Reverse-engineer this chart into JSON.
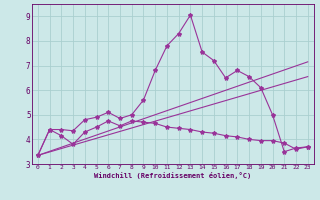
{
  "xlabel": "Windchill (Refroidissement éolien,°C)",
  "background_color": "#cce8e8",
  "grid_color": "#aacfcf",
  "line_color": "#993399",
  "xlim": [
    -0.5,
    23.5
  ],
  "ylim": [
    3.0,
    9.5
  ],
  "yticks": [
    3,
    4,
    5,
    6,
    7,
    8,
    9
  ],
  "xticks": [
    0,
    1,
    2,
    3,
    4,
    5,
    6,
    7,
    8,
    9,
    10,
    11,
    12,
    13,
    14,
    15,
    16,
    17,
    18,
    19,
    20,
    21,
    22,
    23
  ],
  "series1_x": [
    0,
    1,
    2,
    3,
    4,
    5,
    6,
    7,
    8,
    9,
    10,
    11,
    12,
    13,
    14,
    15,
    16,
    17,
    18,
    19,
    20,
    21,
    22,
    23
  ],
  "series1_y": [
    3.35,
    4.4,
    4.4,
    4.35,
    4.8,
    4.9,
    5.1,
    4.85,
    5.0,
    5.6,
    6.8,
    7.8,
    8.3,
    9.05,
    7.55,
    7.2,
    6.5,
    6.8,
    6.55,
    6.1,
    5.0,
    3.5,
    3.65,
    3.7
  ],
  "series2_x": [
    0,
    1,
    2,
    3,
    4,
    5,
    6,
    7,
    8,
    9,
    10,
    11,
    12,
    13,
    14,
    15,
    16,
    17,
    18,
    19,
    20,
    21,
    22,
    23
  ],
  "series2_y": [
    3.35,
    4.4,
    4.15,
    3.8,
    4.3,
    4.5,
    4.75,
    4.55,
    4.75,
    4.7,
    4.65,
    4.5,
    4.45,
    4.4,
    4.3,
    4.25,
    4.15,
    4.1,
    4.0,
    3.95,
    3.95,
    3.85,
    3.6,
    3.7
  ],
  "series3_x": [
    0,
    23
  ],
  "series3_y": [
    3.35,
    6.55
  ],
  "series4_x": [
    0,
    23
  ],
  "series4_y": [
    3.35,
    7.15
  ],
  "xlabel_color": "#660066",
  "tick_color": "#660066",
  "spine_color": "#660066"
}
